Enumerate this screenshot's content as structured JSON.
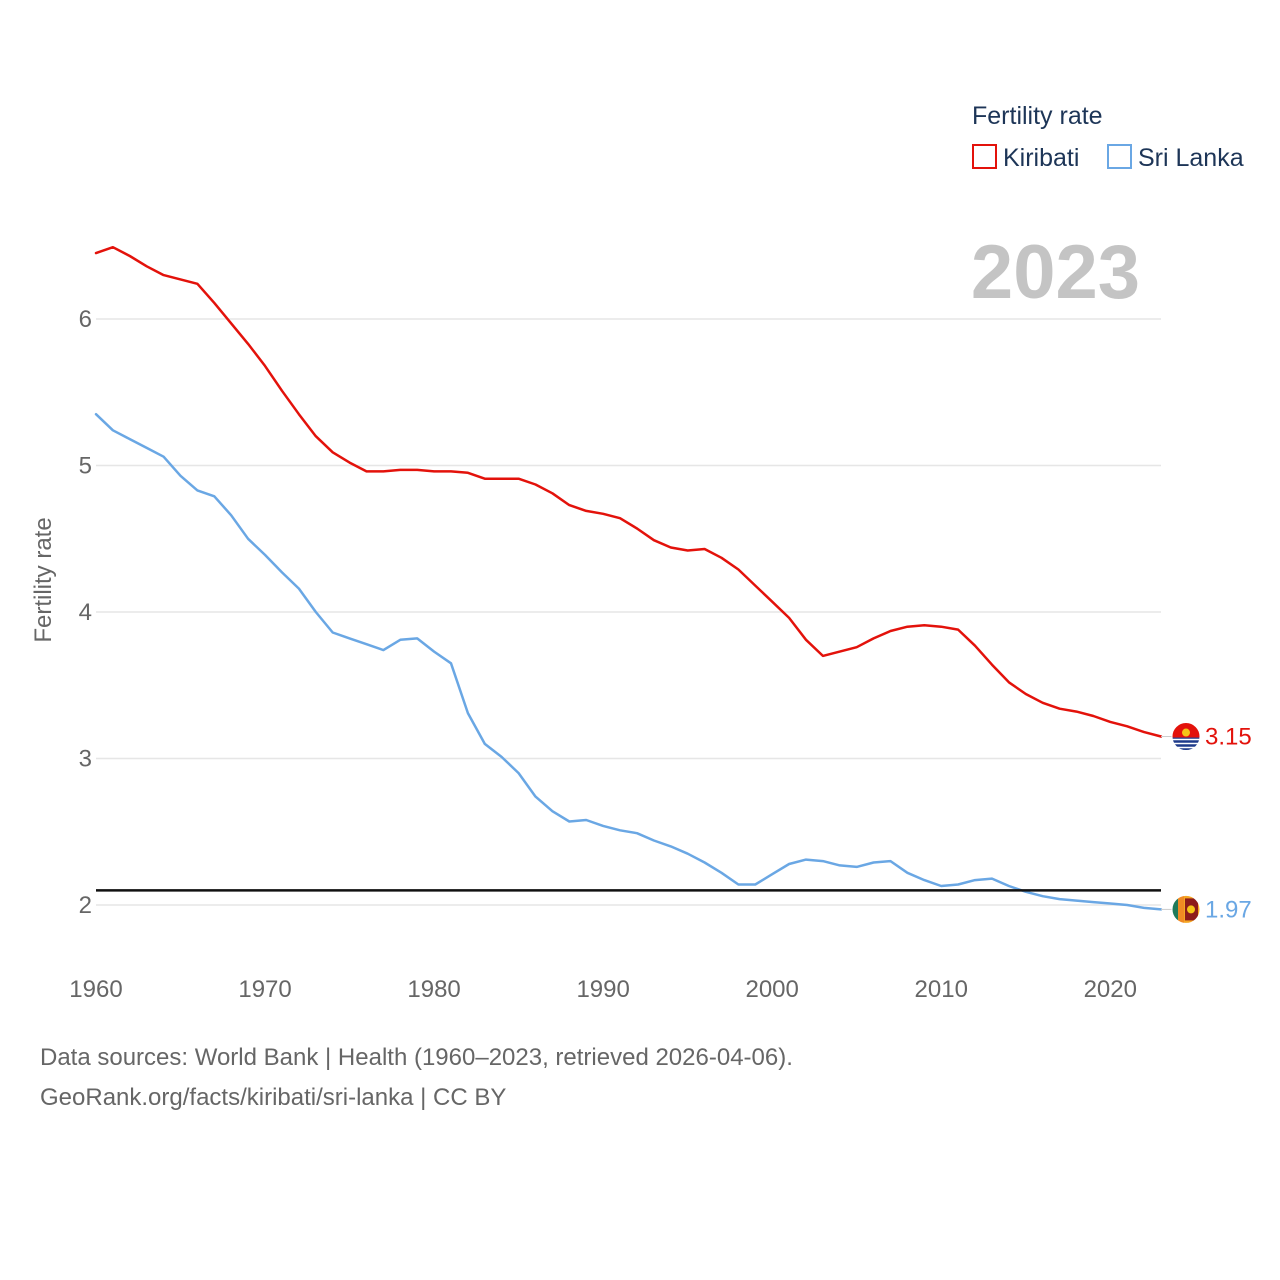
{
  "chart_data": {
    "type": "line",
    "title": "",
    "xlabel": "",
    "ylabel": "Fertility rate",
    "xlim": [
      1960,
      2023
    ],
    "ylim": [
      1.6,
      6.6
    ],
    "yticks": [
      2,
      3,
      4,
      5,
      6
    ],
    "xticks": [
      1960,
      1970,
      1980,
      1990,
      2000,
      2010,
      2020
    ],
    "reference_line": 2.1,
    "year_label": "2023",
    "legend": {
      "title": "Fertility rate",
      "position": "top-right"
    },
    "x": [
      1960,
      1961,
      1962,
      1963,
      1964,
      1965,
      1966,
      1967,
      1968,
      1969,
      1970,
      1971,
      1972,
      1973,
      1974,
      1975,
      1976,
      1977,
      1978,
      1979,
      1980,
      1981,
      1982,
      1983,
      1984,
      1985,
      1986,
      1987,
      1988,
      1989,
      1990,
      1991,
      1992,
      1993,
      1994,
      1995,
      1996,
      1997,
      1998,
      1999,
      2000,
      2001,
      2002,
      2003,
      2004,
      2005,
      2006,
      2007,
      2008,
      2009,
      2010,
      2011,
      2012,
      2013,
      2014,
      2015,
      2016,
      2017,
      2018,
      2019,
      2020,
      2021,
      2022,
      2023
    ],
    "series": [
      {
        "name": "Kiribati",
        "color": "#e3120b",
        "end_label": "3.15",
        "values": [
          6.45,
          6.49,
          6.43,
          6.36,
          6.3,
          6.27,
          6.24,
          6.11,
          5.97,
          5.83,
          5.68,
          5.51,
          5.35,
          5.2,
          5.09,
          5.02,
          4.96,
          4.96,
          4.97,
          4.97,
          4.96,
          4.96,
          4.95,
          4.91,
          4.91,
          4.91,
          4.87,
          4.81,
          4.73,
          4.69,
          4.67,
          4.64,
          4.57,
          4.49,
          4.44,
          4.42,
          4.43,
          4.37,
          4.29,
          4.18,
          4.07,
          3.96,
          3.81,
          3.7,
          3.73,
          3.76,
          3.82,
          3.87,
          3.9,
          3.91,
          3.9,
          3.88,
          3.77,
          3.64,
          3.52,
          3.44,
          3.38,
          3.34,
          3.32,
          3.29,
          3.25,
          3.22,
          3.18,
          3.15
        ]
      },
      {
        "name": "Sri Lanka",
        "color": "#6aa7e4",
        "end_label": "1.97",
        "values": [
          5.35,
          5.24,
          5.18,
          5.12,
          5.06,
          4.93,
          4.83,
          4.79,
          4.66,
          4.5,
          4.39,
          4.27,
          4.16,
          4.0,
          3.86,
          3.82,
          3.78,
          3.74,
          3.81,
          3.82,
          3.73,
          3.65,
          3.31,
          3.1,
          3.01,
          2.9,
          2.74,
          2.64,
          2.57,
          2.58,
          2.54,
          2.51,
          2.49,
          2.44,
          2.4,
          2.35,
          2.29,
          2.22,
          2.14,
          2.14,
          2.21,
          2.28,
          2.31,
          2.3,
          2.27,
          2.26,
          2.29,
          2.3,
          2.22,
          2.17,
          2.13,
          2.14,
          2.17,
          2.18,
          2.13,
          2.09,
          2.06,
          2.04,
          2.03,
          2.02,
          2.01,
          2.0,
          1.98,
          1.97
        ]
      }
    ]
  },
  "footer": {
    "sources": "Data sources: World Bank | Health (1960–2023, retrieved 2026-04-06).",
    "attribution": "GeoRank.org/facts/kiribati/sri-lanka | CC BY"
  }
}
